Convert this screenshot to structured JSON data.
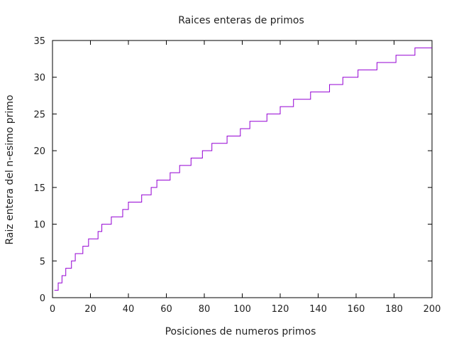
{
  "chart_data": {
    "type": "line",
    "title": "Raices enteras de primos",
    "xlabel": "Posiciones de numeros primos",
    "ylabel": "Raiz entera del n-esimo primo",
    "xlim": [
      0,
      200
    ],
    "ylim": [
      0,
      35
    ],
    "x_ticks": [
      "0",
      "20",
      "40",
      "60",
      "80",
      "100",
      "120",
      "140",
      "160",
      "180",
      "200"
    ],
    "y_ticks": [
      "0",
      "5",
      "10",
      "15",
      "20",
      "25",
      "30",
      "35"
    ],
    "grid": false,
    "line_color": "#9400d3",
    "series": [
      {
        "step_points": [
          [
            1,
            1
          ],
          [
            2,
            1
          ],
          [
            3,
            2
          ],
          [
            5,
            3
          ],
          [
            7,
            4
          ],
          [
            10,
            5
          ],
          [
            12,
            6
          ],
          [
            16,
            7
          ],
          [
            19,
            8
          ],
          [
            24,
            9
          ],
          [
            26,
            10
          ],
          [
            31,
            11
          ],
          [
            37,
            12
          ],
          [
            40,
            13
          ],
          [
            47,
            14
          ],
          [
            52,
            15
          ],
          [
            55,
            16
          ],
          [
            62,
            17
          ],
          [
            67,
            18
          ],
          [
            73,
            19
          ],
          [
            79,
            20
          ],
          [
            84,
            21
          ],
          [
            92,
            22
          ],
          [
            99,
            23
          ],
          [
            104,
            24
          ],
          [
            113,
            25
          ],
          [
            120,
            26
          ],
          [
            127,
            27
          ],
          [
            136,
            28
          ],
          [
            146,
            29
          ],
          [
            153,
            30
          ],
          [
            161,
            31
          ],
          [
            171,
            32
          ],
          [
            181,
            33
          ],
          [
            191,
            34
          ],
          [
            200,
            34
          ]
        ]
      }
    ]
  }
}
